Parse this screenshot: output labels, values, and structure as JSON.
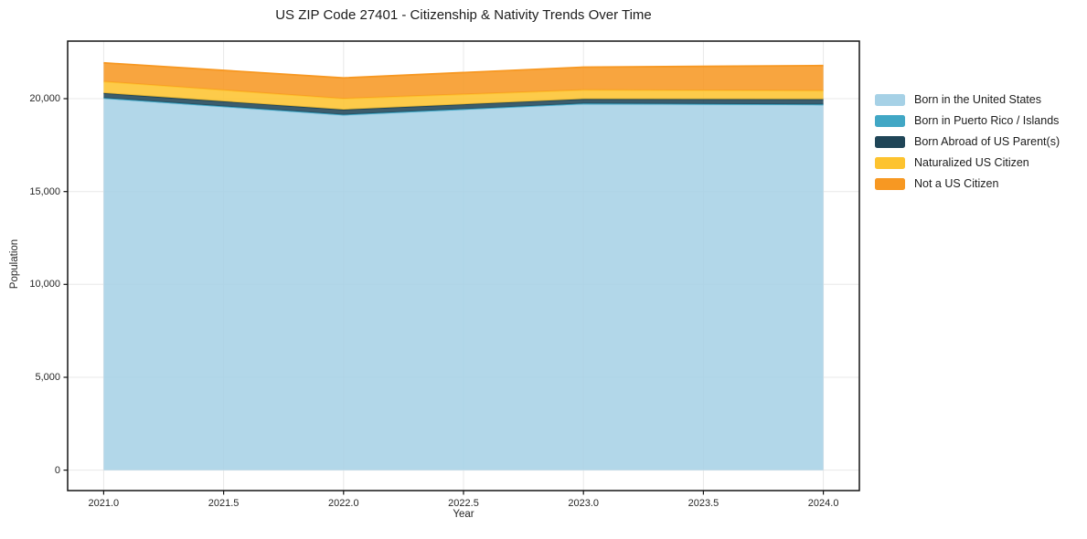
{
  "figure": {
    "title": "US ZIP Code 27401 - Citizenship & Nativity Trends Over Time"
  },
  "chart_data": {
    "type": "area",
    "stacked": true,
    "title": "US ZIP Code 27401 - Citizenship & Nativity Trends Over Time",
    "xlabel": "Year",
    "ylabel": "Population",
    "x": [
      2021,
      2022,
      2023,
      2024
    ],
    "x_tick_values": [
      2021.0,
      2021.5,
      2022.0,
      2022.5,
      2023.0,
      2023.5,
      2024.0
    ],
    "x_ticks": [
      "2021.0",
      "2021.5",
      "2022.0",
      "2022.5",
      "2023.0",
      "2023.5",
      "2024.0"
    ],
    "y_tick_values": [
      0,
      5000,
      10000,
      15000,
      20000
    ],
    "y_ticks": [
      "0",
      "5,000",
      "10,000",
      "15,000",
      "20,000"
    ],
    "xlim": [
      2020.85,
      2024.15
    ],
    "ylim": [
      -1100,
      23100
    ],
    "grid": true,
    "legend_position": "right",
    "series": [
      {
        "name": "Born in the United States",
        "color": "#a6d1e6",
        "values": [
          20000,
          19100,
          19700,
          19650
        ]
      },
      {
        "name": "Born in Puerto Rico / Islands",
        "color": "#41a7c5",
        "values": [
          40,
          40,
          40,
          40
        ]
      },
      {
        "name": "Born Abroad of US Parent(s)",
        "color": "#1f4557",
        "values": [
          260,
          270,
          240,
          280
        ]
      },
      {
        "name": "Naturalized US Citizen",
        "color": "#fdc32f",
        "values": [
          620,
          590,
          490,
          460
        ]
      },
      {
        "name": "Not a US Citizen",
        "color": "#f79822",
        "values": [
          1010,
          1120,
          1230,
          1350
        ]
      }
    ],
    "colors": {
      "grid": "#e8e8e8",
      "axis_border": "#141414",
      "text": "#1f1f1f"
    }
  }
}
